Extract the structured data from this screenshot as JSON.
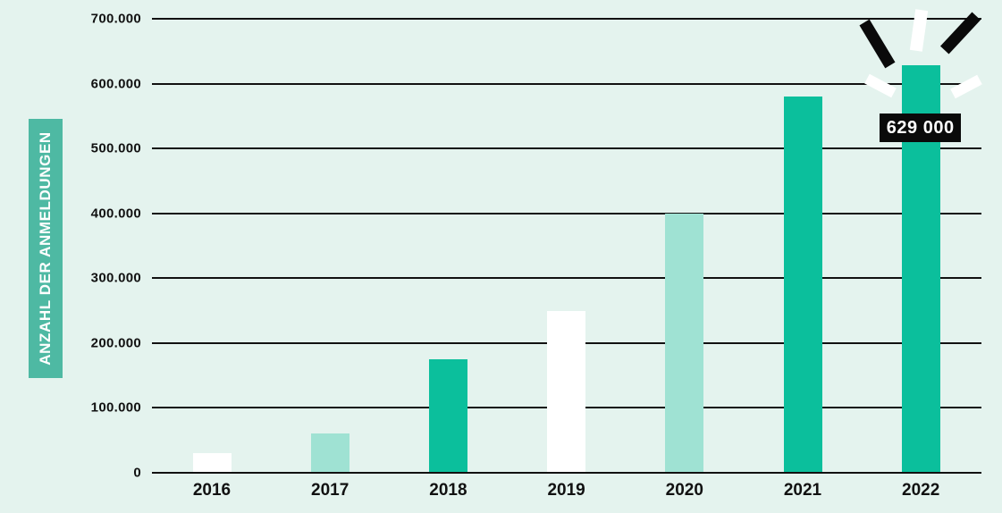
{
  "chart_data": {
    "type": "bar",
    "title": "",
    "xlabel": "",
    "ylabel": "ANZAHL DER ANMELDUNGEN",
    "categories": [
      "2016",
      "2017",
      "2018",
      "2019",
      "2020",
      "2021",
      "2022"
    ],
    "values": [
      30000,
      60000,
      175000,
      250000,
      400000,
      580000,
      629000
    ],
    "bar_colors": [
      "white",
      "light_teal",
      "teal",
      "white",
      "light_teal",
      "teal",
      "teal"
    ],
    "ylim": [
      0,
      700000
    ],
    "ytick_step": 100000,
    "ytick_labels": [
      "0",
      "100.000",
      "200.000",
      "300.000",
      "400.000",
      "500.000",
      "600.000",
      "700.000"
    ],
    "grid": true,
    "legend": false,
    "annotation": {
      "text": "629 000",
      "target_category": "2022"
    }
  },
  "palette": {
    "background": "#e4f3ee",
    "teal": "#0bbf9c",
    "light_teal": "#9fe2d3",
    "white": "#ffffff",
    "axis_label_box": "#4eb9a3",
    "grid_line": "#111111",
    "annotation_bg": "#0a0a0a",
    "annotation_text": "#ffffff"
  },
  "decoration": {
    "burst_rays": [
      {
        "name": "burst-ray-top-left",
        "color": "black"
      },
      {
        "name": "burst-ray-top-center",
        "color": "white"
      },
      {
        "name": "burst-ray-top-right",
        "color": "black"
      },
      {
        "name": "burst-ray-mid-left",
        "color": "white"
      },
      {
        "name": "burst-ray-mid-right",
        "color": "white"
      }
    ]
  }
}
